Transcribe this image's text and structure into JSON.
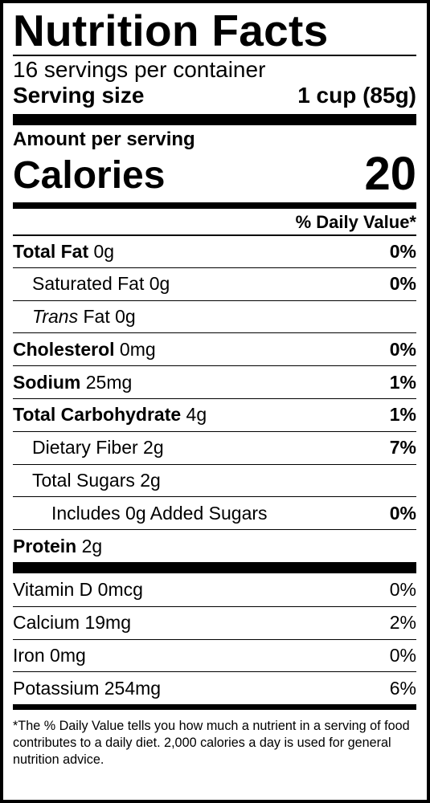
{
  "title": "Nutrition Facts",
  "servings_per_container": "16 servings per container",
  "serving_size": {
    "label": "Serving size",
    "value": "1 cup (85g)"
  },
  "amount_per_serving": "Amount per serving",
  "calories": {
    "label": "Calories",
    "value": "20"
  },
  "daily_value_header": "% Daily Value*",
  "nutrients": [
    {
      "name": "Total Fat",
      "amount": "0g",
      "dv": "0%"
    },
    {
      "name": "Saturated Fat",
      "amount": "0g",
      "dv": "0%"
    },
    {
      "name_italic": "Trans",
      "name": "Fat",
      "amount": "0g",
      "dv": ""
    },
    {
      "name": "Cholesterol",
      "amount": "0mg",
      "dv": "0%"
    },
    {
      "name": "Sodium",
      "amount": "25mg",
      "dv": "1%"
    },
    {
      "name": "Total Carbohydrate",
      "amount": "4g",
      "dv": "1%"
    },
    {
      "name": "Dietary Fiber",
      "amount": "2g",
      "dv": "7%"
    },
    {
      "name": "Total Sugars",
      "amount": "2g",
      "dv": ""
    },
    {
      "name": "Includes 0g Added Sugars",
      "amount": "",
      "dv": "0%"
    },
    {
      "name": "Protein",
      "amount": "2g",
      "dv": ""
    }
  ],
  "vitamins": [
    {
      "name": "Vitamin D 0mcg",
      "dv": "0%"
    },
    {
      "name": "Calcium 19mg",
      "dv": "2%"
    },
    {
      "name": "Iron 0mg",
      "dv": "0%"
    },
    {
      "name": "Potassium 254mg",
      "dv": "6%"
    }
  ],
  "footnote": "*The % Daily Value tells you how much a nutrient in a serving of food contributes to a daily diet. 2,000 calories a day is used for general nutrition advice."
}
